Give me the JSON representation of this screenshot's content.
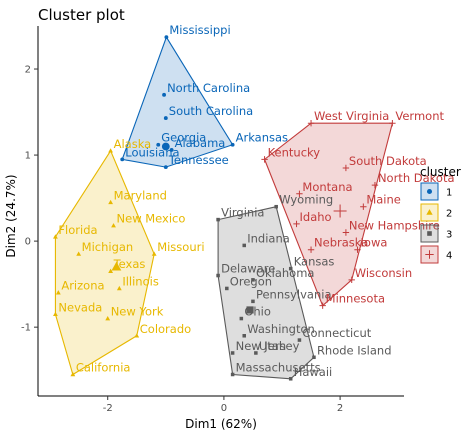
{
  "chart_data": {
    "type": "scatter",
    "title": "Cluster plot",
    "xlabel": "Dim1 (62%)",
    "ylabel": "Dim2 (24.7%)",
    "xlim": [
      -3.2,
      3.1
    ],
    "ylim": [
      -1.8,
      2.5
    ],
    "x_ticks": [
      -2,
      0,
      2
    ],
    "y_ticks": [
      -1,
      0,
      1,
      2
    ],
    "x_tick_labels": [
      "-2",
      "0",
      "2"
    ],
    "y_tick_labels": [
      "-1",
      "0",
      "1",
      "2"
    ],
    "grid": false,
    "legend": {
      "title": "cluster",
      "position": "right",
      "entries": [
        "1",
        "2",
        "3",
        "4"
      ]
    },
    "series": [
      {
        "name": "1",
        "color": "#0a66b8",
        "marker": "circle",
        "center": [
          -1.0,
          1.1
        ],
        "points": [
          {
            "label": "Mississippi",
            "x": -0.99,
            "y": 2.37
          },
          {
            "label": "North Carolina",
            "x": -1.03,
            "y": 1.7
          },
          {
            "label": "South Carolina",
            "x": -1.0,
            "y": 1.43
          },
          {
            "label": "Georgia",
            "x": -1.13,
            "y": 1.12
          },
          {
            "label": "Arkansas",
            "x": 0.15,
            "y": 1.12
          },
          {
            "label": "Alabama",
            "x": -0.9,
            "y": 1.06
          },
          {
            "label": "Louisiana",
            "x": -1.75,
            "y": 0.95
          },
          {
            "label": "Tennessee",
            "x": -1.0,
            "y": 0.86
          }
        ]
      },
      {
        "name": "2",
        "color": "#e7b800",
        "marker": "triangle",
        "center": [
          -1.85,
          -0.3
        ],
        "points": [
          {
            "label": "Alaska",
            "x": -1.95,
            "y": 1.05
          },
          {
            "label": "Maryland",
            "x": -1.95,
            "y": 0.45
          },
          {
            "label": "New Mexico",
            "x": -1.9,
            "y": 0.18
          },
          {
            "label": "Florida",
            "x": -2.9,
            "y": 0.05
          },
          {
            "label": "Missouri",
            "x": -1.2,
            "y": -0.15
          },
          {
            "label": "Michigan",
            "x": -2.5,
            "y": -0.15
          },
          {
            "label": "Texas",
            "x": -1.95,
            "y": -0.35
          },
          {
            "label": "Illinois",
            "x": -1.8,
            "y": -0.55
          },
          {
            "label": "Arizona",
            "x": -2.85,
            "y": -0.6
          },
          {
            "label": "Nevada",
            "x": -2.9,
            "y": -0.85
          },
          {
            "label": "New York",
            "x": -2.0,
            "y": -0.9
          },
          {
            "label": "Colorado",
            "x": -1.5,
            "y": -1.1
          },
          {
            "label": "California",
            "x": -2.6,
            "y": -1.55
          }
        ]
      },
      {
        "name": "3",
        "color": "#5a5a5a",
        "marker": "square",
        "center": [
          0.45,
          -0.8
        ],
        "points": [
          {
            "label": "Wyoming",
            "x": 0.9,
            "y": 0.4
          },
          {
            "label": "Virginia",
            "x": -0.1,
            "y": 0.25
          },
          {
            "label": "Indiana",
            "x": 0.35,
            "y": -0.05
          },
          {
            "label": "Kansas",
            "x": 1.15,
            "y": -0.32
          },
          {
            "label": "Delaware",
            "x": -0.1,
            "y": -0.4
          },
          {
            "label": "Oklahoma",
            "x": 0.5,
            "y": -0.45
          },
          {
            "label": "Oregon",
            "x": 0.05,
            "y": -0.55
          },
          {
            "label": "Pennsylvania",
            "x": 0.5,
            "y": -0.7
          },
          {
            "label": "Ohio",
            "x": 0.3,
            "y": -0.9
          },
          {
            "label": "Washington",
            "x": 0.35,
            "y": -1.1
          },
          {
            "label": "Connecticut",
            "x": 1.3,
            "y": -1.15
          },
          {
            "label": "New Jersey",
            "x": 0.15,
            "y": -1.3
          },
          {
            "label": "Utah",
            "x": 0.55,
            "y": -1.3
          },
          {
            "label": "Rhode Island",
            "x": 1.55,
            "y": -1.35
          },
          {
            "label": "Massachusetts",
            "x": 0.15,
            "y": -1.55
          },
          {
            "label": "Hawaii",
            "x": 1.15,
            "y": -1.6
          }
        ]
      },
      {
        "name": "4",
        "color": "#c23b3b",
        "marker": "plus",
        "center": [
          2.0,
          0.35
        ],
        "points": [
          {
            "label": "West Virginia",
            "x": 1.5,
            "y": 1.37
          },
          {
            "label": "Vermont",
            "x": 2.9,
            "y": 1.37
          },
          {
            "label": "South Dakota",
            "x": 2.1,
            "y": 0.85
          },
          {
            "label": "Kentucky",
            "x": 0.7,
            "y": 0.95
          },
          {
            "label": "North Dakota",
            "x": 2.6,
            "y": 0.65
          },
          {
            "label": "Montana",
            "x": 1.3,
            "y": 0.55
          },
          {
            "label": "Maine",
            "x": 2.4,
            "y": 0.4
          },
          {
            "label": "Idaho",
            "x": 1.25,
            "y": 0.2
          },
          {
            "label": "New Hampshire",
            "x": 2.1,
            "y": 0.1
          },
          {
            "label": "Nebraska",
            "x": 1.5,
            "y": -0.1
          },
          {
            "label": "Iowa",
            "x": 2.3,
            "y": -0.1
          },
          {
            "label": "Wisconsin",
            "x": 2.2,
            "y": -0.45
          },
          {
            "label": "Minnesota",
            "x": 1.7,
            "y": -0.75
          }
        ]
      }
    ]
  }
}
